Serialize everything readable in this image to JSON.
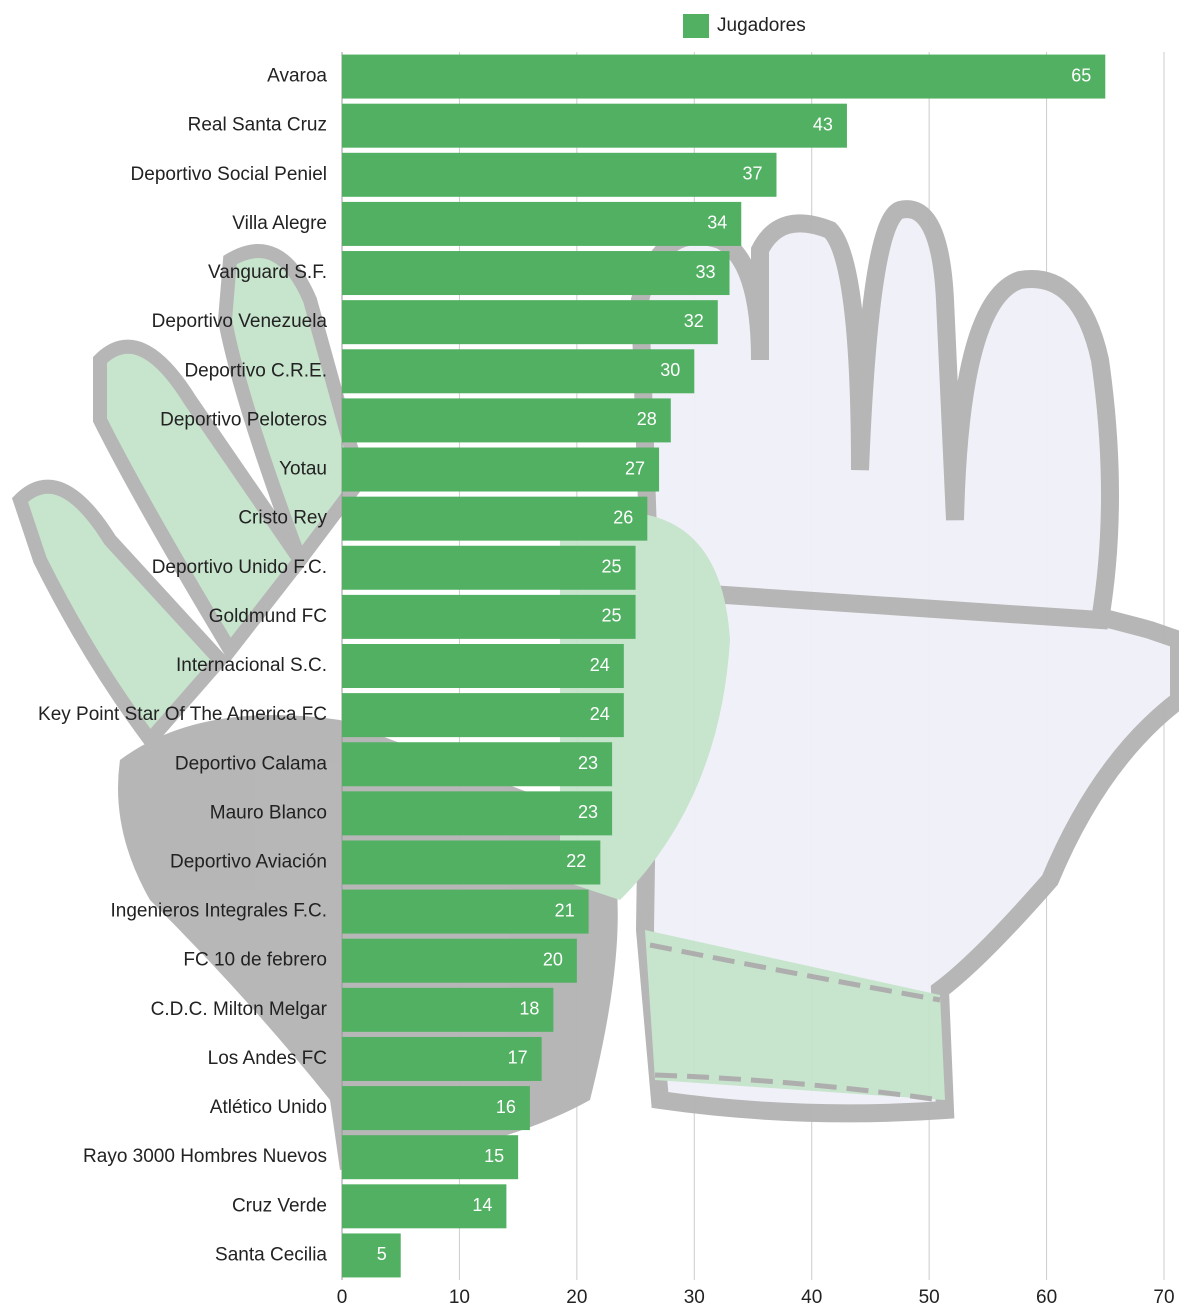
{
  "chart_data": {
    "type": "bar",
    "orientation": "horizontal",
    "categories": [
      "Avaroa",
      "Real Santa Cruz",
      "Deportivo Social Peniel",
      "Villa Alegre",
      "Vanguard S.F.",
      "Deportivo Venezuela",
      "Deportivo C.R.E.",
      "Deportivo Peloteros",
      "Yotau",
      "Cristo Rey",
      "Deportivo Unido F.C.",
      "Goldmund FC",
      "Internacional S.C.",
      "Key Point Star Of The America FC",
      "Deportivo Calama",
      "Mauro Blanco",
      "Deportivo Aviación",
      "Ingenieros Integrales F.C.",
      "FC 10 de febrero",
      "C.D.C. Milton Melgar",
      "Los Andes FC",
      "Atlético Unido",
      "Rayo 3000 Hombres Nuevos",
      "Cruz Verde",
      "Santa Cecilia"
    ],
    "series": [
      {
        "name": "Jugadores",
        "color": "#52b062",
        "values": [
          65,
          43,
          37,
          34,
          33,
          32,
          30,
          28,
          27,
          26,
          25,
          25,
          24,
          24,
          23,
          23,
          22,
          21,
          20,
          18,
          17,
          16,
          15,
          14,
          5
        ]
      }
    ],
    "xlim": [
      0,
      70
    ],
    "xticks": [
      0,
      10,
      20,
      30,
      40,
      50,
      60,
      70
    ],
    "grid": true,
    "legend": "top"
  }
}
